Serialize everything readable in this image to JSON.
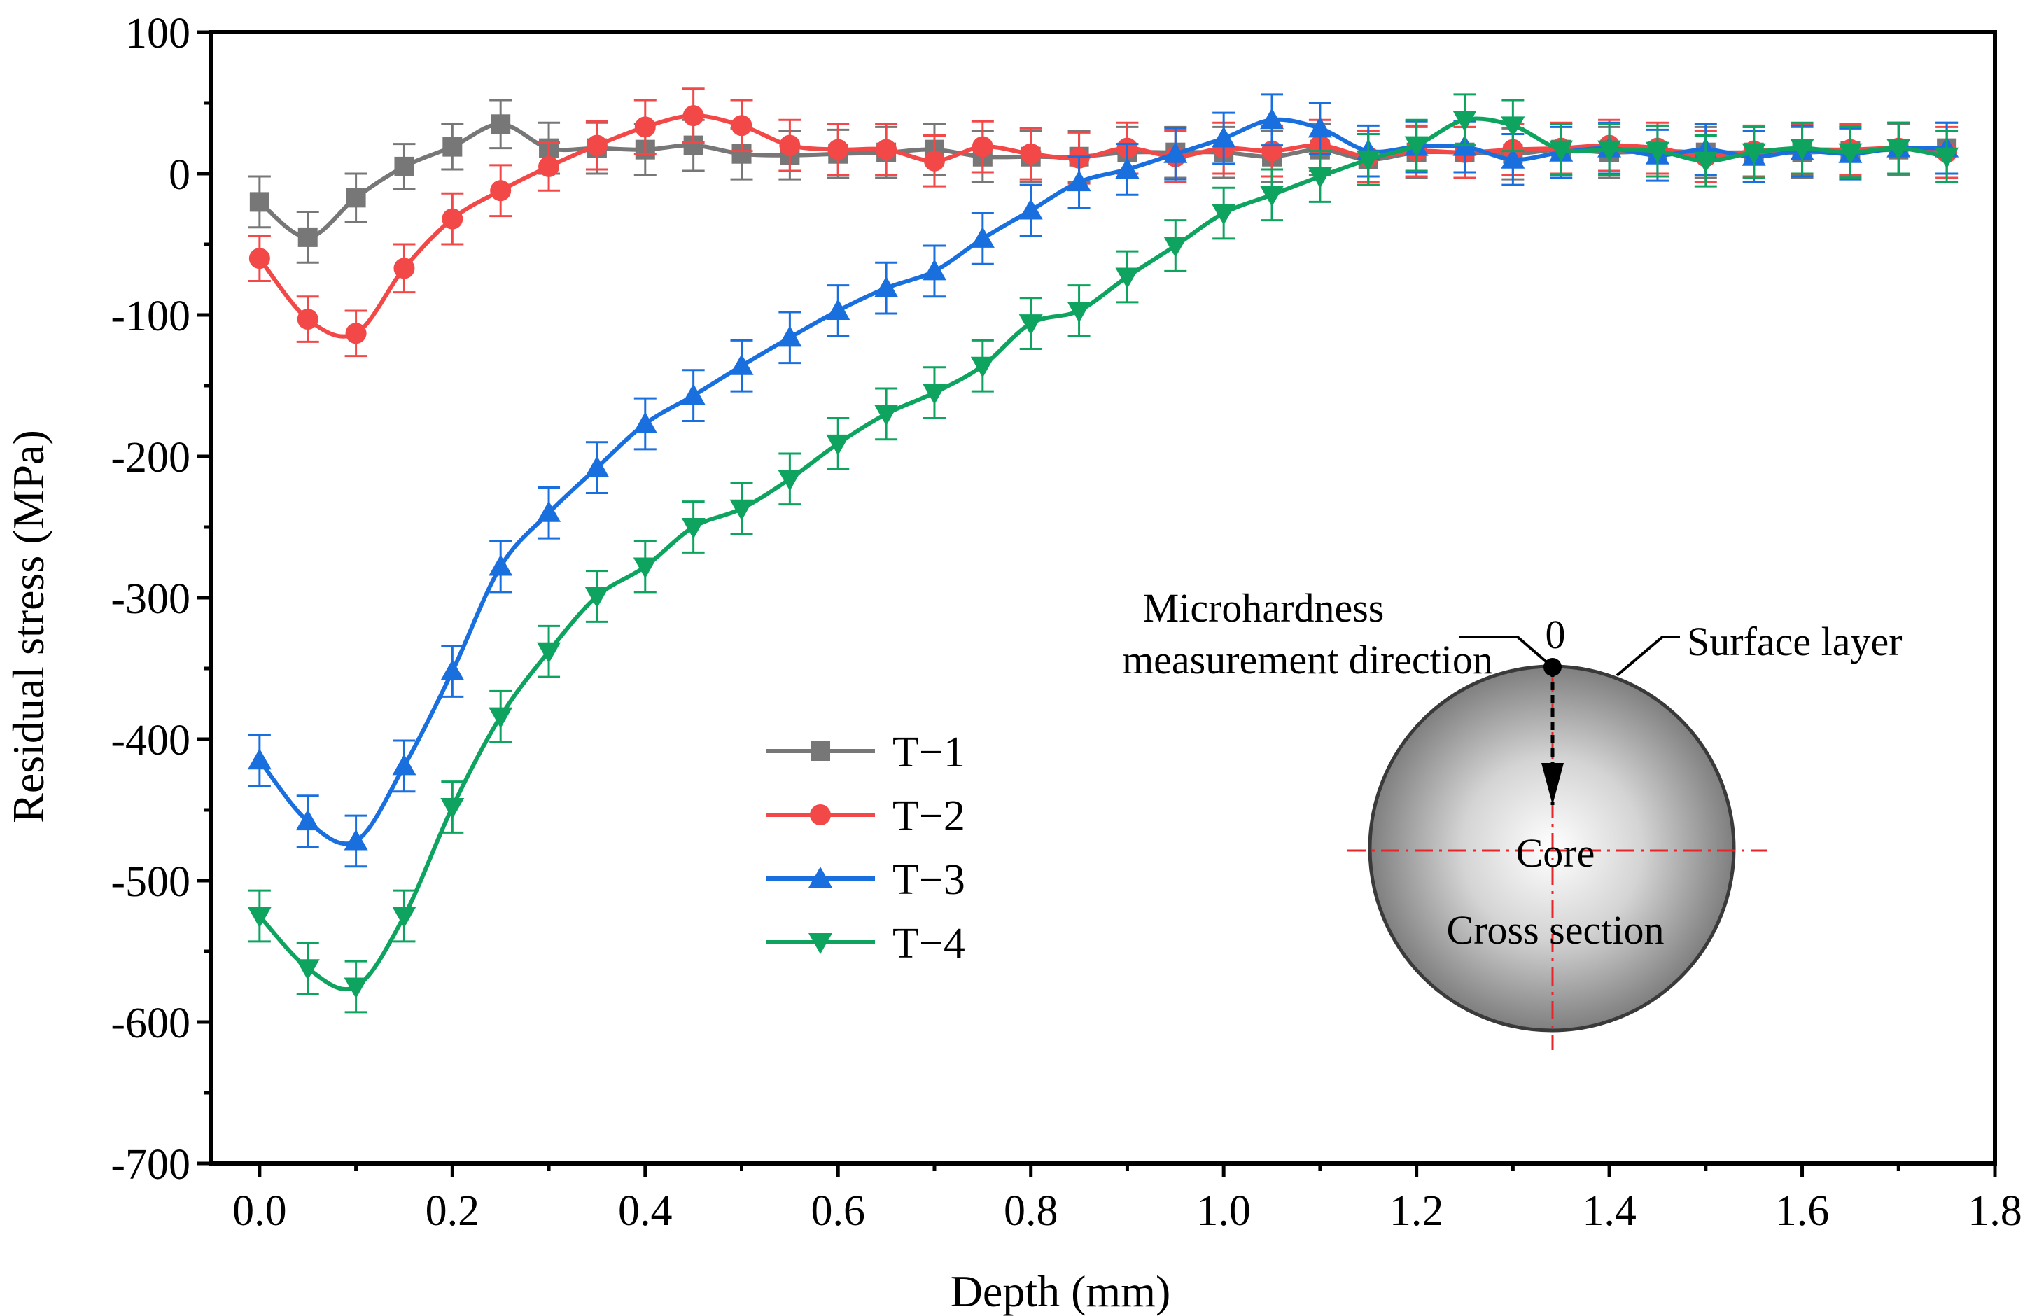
{
  "chart_data": {
    "type": "line",
    "xlabel": "Depth (mm)",
    "ylabel": "Residual stress (MPa)",
    "xlim": [
      -0.05,
      1.8
    ],
    "ylim": [
      -700,
      100
    ],
    "xticks": [
      0.0,
      0.2,
      0.4,
      0.6,
      0.8,
      1.0,
      1.2,
      1.4,
      1.6,
      1.8
    ],
    "xtick_labels": [
      "0.0",
      "0.2",
      "0.4",
      "0.6",
      "0.8",
      "1.0",
      "1.2",
      "1.4",
      "1.6",
      "1.8"
    ],
    "yticks": [
      -700,
      -600,
      -500,
      -400,
      -300,
      -200,
      -100,
      0,
      100
    ],
    "ytick_labels": [
      "-700",
      "-600",
      "-500",
      "-400",
      "-300",
      "-200",
      "-100",
      "0",
      "100"
    ],
    "grid": false,
    "legend_position": "center-left",
    "x": [
      0.0,
      0.05,
      0.1,
      0.15,
      0.2,
      0.25,
      0.3,
      0.35,
      0.4,
      0.45,
      0.5,
      0.55,
      0.6,
      0.65,
      0.7,
      0.75,
      0.8,
      0.85,
      0.9,
      0.95,
      1.0,
      1.05,
      1.1,
      1.15,
      1.2,
      1.25,
      1.3,
      1.35,
      1.4,
      1.45,
      1.5,
      1.55,
      1.6,
      1.65,
      1.7,
      1.75
    ],
    "series": [
      {
        "name": "T−1",
        "color": "#777777",
        "marker": "square",
        "values": [
          -20,
          -45,
          -17,
          5,
          19,
          35,
          18,
          18,
          17,
          20,
          14,
          13,
          14,
          15,
          17,
          12,
          12,
          12,
          15,
          15,
          15,
          12,
          17,
          10,
          15,
          15,
          14,
          17,
          15,
          16,
          15,
          15,
          15,
          16,
          17,
          18
        ],
        "errors": [
          18,
          18,
          17,
          16,
          16,
          17,
          18,
          18,
          18,
          18,
          18,
          17,
          17,
          18,
          18,
          18,
          18,
          18,
          18,
          18,
          18,
          18,
          18,
          18,
          18,
          18,
          18,
          18,
          18,
          18,
          18,
          18,
          18,
          18,
          18,
          18
        ]
      },
      {
        "name": "T−2",
        "color": "#f24848",
        "marker": "circle",
        "values": [
          -60,
          -103,
          -113,
          -67,
          -32,
          -12,
          5,
          20,
          33,
          41,
          34,
          20,
          17,
          17,
          9,
          19,
          14,
          11,
          18,
          12,
          18,
          16,
          20,
          12,
          16,
          15,
          17,
          18,
          20,
          18,
          12,
          16,
          17,
          17,
          18,
          15
        ],
        "errors": [
          16,
          16,
          16,
          17,
          18,
          18,
          17,
          17,
          19,
          19,
          18,
          18,
          18,
          18,
          18,
          18,
          18,
          18,
          18,
          18,
          18,
          18,
          18,
          18,
          18,
          18,
          18,
          18,
          18,
          18,
          18,
          18,
          18,
          18,
          18,
          18
        ]
      },
      {
        "name": "T−3",
        "color": "#1a6fdf",
        "marker": "triangle-up",
        "values": [
          -415,
          -458,
          -472,
          -419,
          -352,
          -278,
          -240,
          -208,
          -177,
          -157,
          -136,
          -116,
          -97,
          -81,
          -69,
          -46,
          -26,
          -6,
          3,
          14,
          25,
          38,
          32,
          16,
          19,
          19,
          10,
          15,
          18,
          13,
          17,
          12,
          16,
          14,
          18,
          18
        ],
        "errors": [
          18,
          18,
          18,
          18,
          18,
          18,
          18,
          18,
          18,
          18,
          18,
          18,
          18,
          18,
          18,
          18,
          18,
          18,
          18,
          18,
          18,
          18,
          18,
          18,
          18,
          18,
          18,
          18,
          18,
          18,
          18,
          18,
          18,
          18,
          18,
          18
        ]
      },
      {
        "name": "T−4",
        "color": "#0ea45f",
        "marker": "triangle-down",
        "values": [
          -525,
          -562,
          -575,
          -525,
          -448,
          -384,
          -338,
          -299,
          -278,
          -250,
          -237,
          -216,
          -191,
          -170,
          -155,
          -136,
          -106,
          -97,
          -73,
          -51,
          -28,
          -15,
          -2,
          10,
          20,
          38,
          34,
          17,
          17,
          16,
          9,
          15,
          18,
          15,
          18,
          12
        ],
        "errors": [
          18,
          18,
          18,
          18,
          18,
          18,
          18,
          18,
          18,
          18,
          18,
          18,
          18,
          18,
          18,
          18,
          18,
          18,
          18,
          18,
          18,
          18,
          18,
          18,
          18,
          18,
          18,
          18,
          18,
          18,
          18,
          18,
          18,
          18,
          18,
          18
        ]
      }
    ],
    "inset": {
      "label_direction_line1": "Microhardness",
      "label_direction_line2": "measurement direction",
      "label_zero": "0",
      "label_surface": "Surface layer",
      "label_core": "Core",
      "label_section": "Cross section"
    }
  }
}
